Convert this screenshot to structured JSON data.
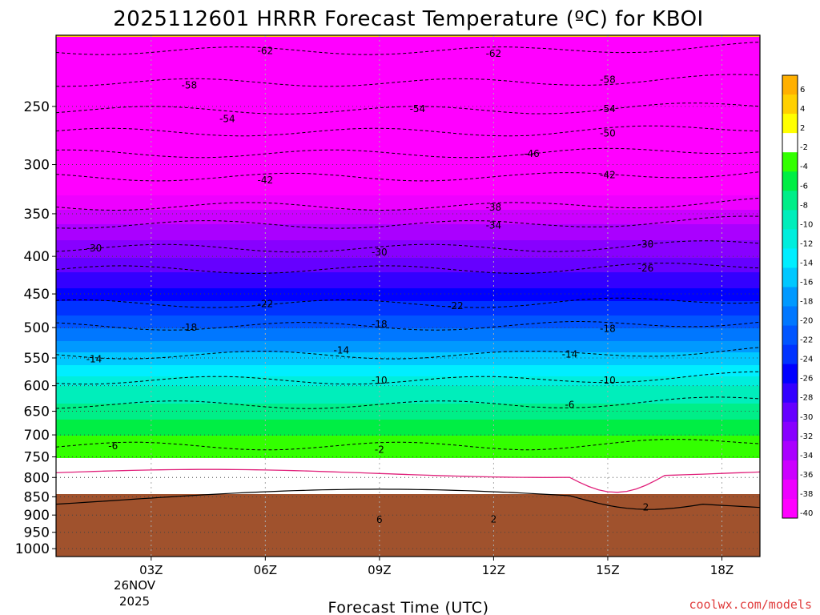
{
  "chart_data": {
    "type": "contour",
    "title": "2025112601 HRRR Forecast Temperature (ºC) for KBOI",
    "xlabel": "Forecast Time (UTC)",
    "ylabel": "",
    "credit": "coolwx.com/models",
    "x_ticks": [
      "03Z",
      "06Z",
      "09Z",
      "12Z",
      "15Z",
      "18Z"
    ],
    "x_tick_hours": [
      3,
      6,
      9,
      12,
      15,
      18
    ],
    "x_range": [
      0.5,
      19
    ],
    "date_label": {
      "day": "26NOV",
      "year": "2025"
    },
    "y_ticks": [
      250,
      300,
      350,
      400,
      450,
      500,
      550,
      600,
      650,
      700,
      750,
      800,
      850,
      900,
      950,
      1000
    ],
    "y_tick_labels": [
      "250",
      "300",
      "350",
      "400",
      "450",
      "500",
      "550",
      "600",
      "650",
      "700",
      "750",
      "800",
      "850",
      "900",
      "950",
      "1000"
    ],
    "y_range": [
      200,
      1025
    ],
    "y_scale": "log-pressure",
    "grid": true,
    "surface_pressure": 925,
    "colorbar": {
      "ticks": [
        "6",
        "4",
        "2",
        "-2",
        "-4",
        "-6",
        "-8",
        "-10",
        "-12",
        "-14",
        "-16",
        "-18",
        "-20",
        "-22",
        "-24",
        "-26",
        "-28",
        "-30",
        "-32",
        "-34",
        "-36",
        "-38",
        "-40"
      ],
      "colors": [
        "#ffb000",
        "#ffd000",
        "#ffff00",
        "#ffffff",
        "#33ff00",
        "#00ee44",
        "#00ee88",
        "#00eebb",
        "#00eedd",
        "#00eeff",
        "#00c8ff",
        "#0099ff",
        "#0077ff",
        "#0055ff",
        "#0033ff",
        "#0000ff",
        "#3300ff",
        "#6600ff",
        "#8800ff",
        "#aa00ff",
        "#cc00ff",
        "#ee00ff",
        "#ff00ff"
      ]
    },
    "contour_labels": [
      {
        "text": "-62",
        "t": 6.0,
        "p": 210
      },
      {
        "text": "-62",
        "t": 12.0,
        "p": 212
      },
      {
        "text": "-58",
        "t": 4.0,
        "p": 234
      },
      {
        "text": "-58",
        "t": 15.0,
        "p": 230
      },
      {
        "text": "-54",
        "t": 5.0,
        "p": 260
      },
      {
        "text": "-54",
        "t": 10.0,
        "p": 252
      },
      {
        "text": "-54",
        "t": 15.0,
        "p": 252
      },
      {
        "text": "-50",
        "t": 15.0,
        "p": 272
      },
      {
        "text": "-46",
        "t": 13.0,
        "p": 290
      },
      {
        "text": "-42",
        "t": 6.0,
        "p": 315
      },
      {
        "text": "-42",
        "t": 15.0,
        "p": 310
      },
      {
        "text": "-38",
        "t": 12.0,
        "p": 343
      },
      {
        "text": "-34",
        "t": 12.0,
        "p": 363
      },
      {
        "text": "-30",
        "t": 1.5,
        "p": 390
      },
      {
        "text": "-30",
        "t": 9.0,
        "p": 395
      },
      {
        "text": "-30",
        "t": 16.0,
        "p": 385
      },
      {
        "text": "-26",
        "t": 16.0,
        "p": 415
      },
      {
        "text": "-22",
        "t": 6.0,
        "p": 464
      },
      {
        "text": "-22",
        "t": 11.0,
        "p": 467
      },
      {
        "text": "-18",
        "t": 4.0,
        "p": 500
      },
      {
        "text": "-18",
        "t": 9.0,
        "p": 495
      },
      {
        "text": "-18",
        "t": 15.0,
        "p": 502
      },
      {
        "text": "-14",
        "t": 1.5,
        "p": 552
      },
      {
        "text": "-14",
        "t": 8.0,
        "p": 537
      },
      {
        "text": "-14",
        "t": 14.0,
        "p": 544
      },
      {
        "text": "-10",
        "t": 9.0,
        "p": 590
      },
      {
        "text": "-10",
        "t": 15.0,
        "p": 590
      },
      {
        "text": "-6",
        "t": 14.0,
        "p": 637
      },
      {
        "text": "-6",
        "t": 2.0,
        "p": 725
      },
      {
        "text": "-2",
        "t": 9.0,
        "p": 733
      },
      {
        "text": "2",
        "t": 16.0,
        "p": 878
      },
      {
        "text": "6",
        "t": 9.0,
        "p": 913
      },
      {
        "text": "2",
        "t": 12.0,
        "p": 912
      }
    ]
  }
}
